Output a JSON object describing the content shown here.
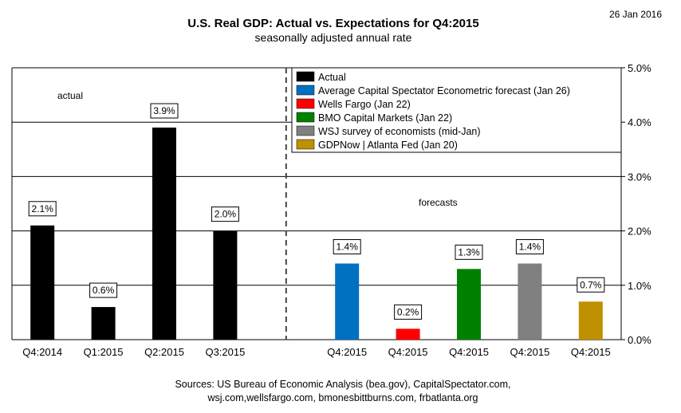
{
  "date": "26 Jan 2016",
  "chart_data": {
    "type": "bar",
    "title": "U.S. Real GDP: Actual vs. Expectations for Q4:2015",
    "subtitle": "seasonally adjusted annual rate",
    "ylim": [
      0,
      5
    ],
    "y_ticks": [
      "0.0%",
      "1.0%",
      "2.0%",
      "3.0%",
      "4.0%",
      "5.0%"
    ],
    "grid": true,
    "legend_position": "top-right",
    "annotations": {
      "actual": "actual",
      "forecasts": "forecasts"
    },
    "bars": [
      {
        "category": "Q4:2014",
        "value": 2.1,
        "label": "2.1%",
        "series": "Actual",
        "color": "#000000"
      },
      {
        "category": "Q1:2015",
        "value": 0.6,
        "label": "0.6%",
        "series": "Actual",
        "color": "#000000"
      },
      {
        "category": "Q2:2015",
        "value": 3.9,
        "label": "3.9%",
        "series": "Actual",
        "color": "#000000"
      },
      {
        "category": "Q3:2015",
        "value": 2.0,
        "label": "2.0%",
        "series": "Actual",
        "color": "#000000"
      },
      {
        "category": "Q4:2015",
        "value": 1.4,
        "label": "1.4%",
        "series": "Average Capital Spectator Econometric forecast (Jan 26)",
        "color": "#0070C0"
      },
      {
        "category": "Q4:2015",
        "value": 0.2,
        "label": "0.2%",
        "series": "Wells Fargo (Jan 22)",
        "color": "#FF0000"
      },
      {
        "category": "Q4:2015",
        "value": 1.3,
        "label": "1.3%",
        "series": "BMO Capital Markets (Jan 22)",
        "color": "#008000"
      },
      {
        "category": "Q4:2015",
        "value": 1.4,
        "label": "1.4%",
        "series": "WSJ survey of economists (mid-Jan)",
        "color": "#808080"
      },
      {
        "category": "Q4:2015",
        "value": 0.7,
        "label": "0.7%",
        "series": "GDPNow | Atlanta Fed (Jan 20)",
        "color": "#BF9000"
      }
    ],
    "legend": [
      {
        "name": "Actual",
        "color": "#000000"
      },
      {
        "name": "Average Capital Spectator Econometric forecast (Jan 26)",
        "color": "#0070C0"
      },
      {
        "name": "Wells Fargo (Jan 22)",
        "color": "#FF0000"
      },
      {
        "name": "BMO Capital Markets (Jan 22)",
        "color": "#008000"
      },
      {
        "name": "WSJ survey of economists (mid-Jan)",
        "color": "#808080"
      },
      {
        "name": "GDPNow | Atlanta Fed (Jan 20)",
        "color": "#BF9000"
      }
    ]
  },
  "sources": [
    "Sources: US Bureau of Economic Analysis (bea.gov), CapitalSpectator.com,",
    "wsj.com,wellsfargo.com,  bmonesbittburns.com, frbatlanta.org"
  ]
}
